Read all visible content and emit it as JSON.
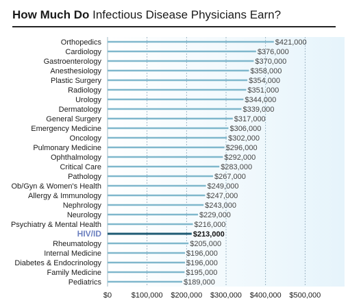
{
  "chart_data": {
    "type": "bar",
    "orientation": "horizontal",
    "title_bold": "How Much Do",
    "title_rest": " Infectious Disease Physicians Earn?",
    "xlabel": "",
    "ylabel": "",
    "xlim": [
      0,
      600000
    ],
    "x_ticks": [
      0,
      100000,
      200000,
      300000,
      400000,
      500000
    ],
    "x_tick_labels": [
      "$0",
      "$100,000",
      "$200,000",
      "$300,000",
      "$400,000",
      "$500,000"
    ],
    "grid": "vertical dashed",
    "highlight_category": "HIV/ID",
    "colors": {
      "bar": "#7fb7cc",
      "bar_highlight": "#1d5a73",
      "label_highlight": "#6b7fbf",
      "background_gradient_end": "#e6f4fb"
    },
    "categories": [
      "Orthopedics",
      "Cardiology",
      "Gastroenterology",
      "Anesthesiology",
      "Plastic Surgery",
      "Radiology",
      "Urology",
      "Dermatology",
      "General Surgery",
      "Emergency Medicine",
      "Oncology",
      "Pulmonary Medicine",
      "Ophthalmology",
      "Critical Care",
      "Pathology",
      "Ob/Gyn & Women's Health",
      "Allergy & Immunology",
      "Nephrology",
      "Neurology",
      "Psychiatry & Mental Health",
      "HIV/ID",
      "Rheumatology",
      "Internal Medicine",
      "Diabetes & Endocrinology",
      "Family Medicine",
      "Pediatrics"
    ],
    "values": [
      421000,
      376000,
      370000,
      358000,
      354000,
      351000,
      344000,
      339000,
      317000,
      306000,
      302000,
      296000,
      292000,
      283000,
      267000,
      249000,
      247000,
      243000,
      229000,
      216000,
      213000,
      205000,
      196000,
      196000,
      195000,
      189000
    ],
    "value_labels": [
      "$421,000",
      "$376,000",
      "$370,000",
      "$358,000",
      "$354,000",
      "$351,000",
      "$344,000",
      "$339,000",
      "$317,000",
      "$306,000",
      "$302,000",
      "$296,000",
      "$292,000",
      "$283,000",
      "$267,000",
      "$249,000",
      "$247,000",
      "$243,000",
      "$229,000",
      "$216,000",
      "$213,000",
      "$205,000",
      "$196,000",
      "$196,000",
      "$195,000",
      "$189,000"
    ]
  }
}
